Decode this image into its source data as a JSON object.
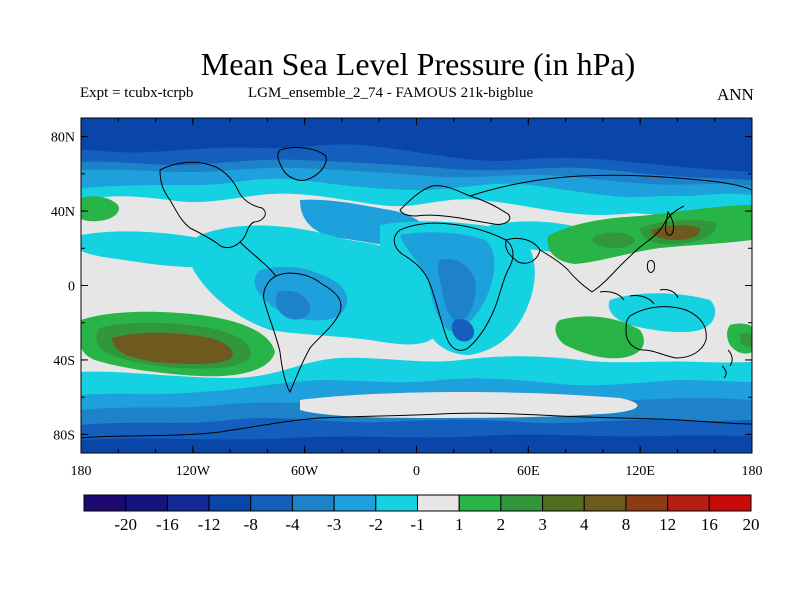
{
  "title": "Mean Sea Level Pressure (in hPa)",
  "subtitle_left": "Expt = tcubx-tcrpb",
  "subtitle_center": "LGM_ensemble_2_74 - FAMOUS 21k-bigblue",
  "subtitle_right": "ANN",
  "lat_labels": [
    "80N",
    "40N",
    "0",
    "40S",
    "80S"
  ],
  "lon_labels": [
    "180",
    "120W",
    "60W",
    "0",
    "60E",
    "120E",
    "180"
  ],
  "colorbar": {
    "labels": [
      "-20",
      "-16",
      "-12",
      "-8",
      "-4",
      "-3",
      "-2",
      "-1",
      "1",
      "2",
      "3",
      "4",
      "8",
      "12",
      "16",
      "20"
    ],
    "colors": [
      "#1e0a6e",
      "#14147d",
      "#142896",
      "#0a46aa",
      "#145fbe",
      "#1e82c8",
      "#1ea0dc",
      "#14d2e1",
      "#e6e6e6",
      "#28b446",
      "#32963c",
      "#506e1e",
      "#6e5a1e",
      "#8c3c14",
      "#b41e14",
      "#c80a0a"
    ]
  },
  "map": {
    "extent": {
      "lon": [
        -180,
        180
      ],
      "lat": [
        -90,
        90
      ]
    },
    "fill_colors": {
      "nodata": "#e6e6e6",
      "l1": "#14d2e1",
      "l2": "#1ea0dc",
      "l3": "#1e82c8",
      "l4": "#145fbe",
      "l5": "#0a46aa",
      "g1": "#28b446",
      "g2": "#32963c",
      "g3": "#6e5a1e"
    }
  }
}
